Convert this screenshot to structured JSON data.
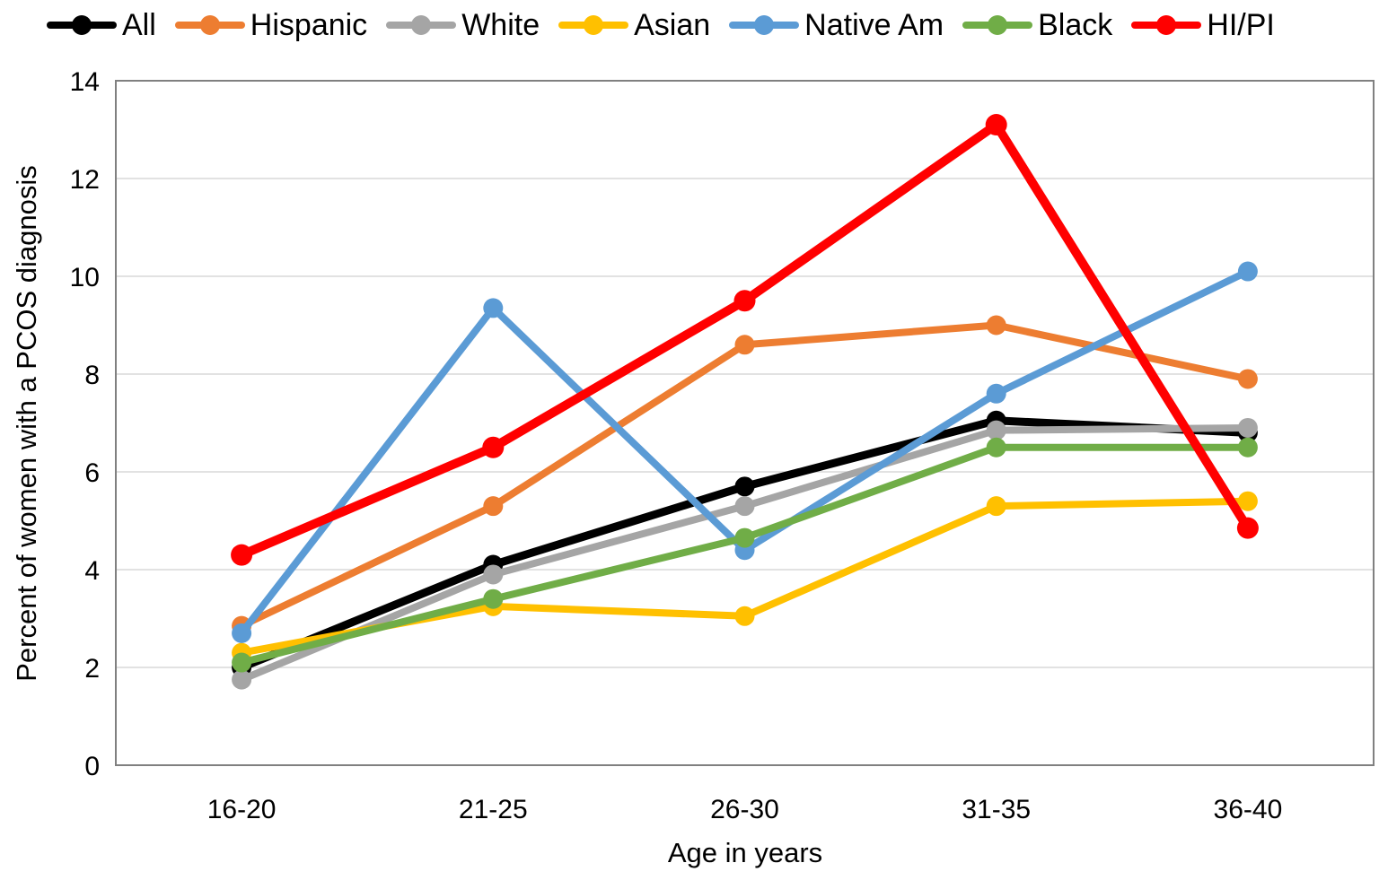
{
  "chart_data": {
    "type": "line",
    "title": "",
    "xlabel": "Age in years",
    "ylabel": "Percent of women with a PCOS diagnosis",
    "categories": [
      "16-20",
      "21-25",
      "26-30",
      "31-35",
      "36-40"
    ],
    "ylim": [
      0,
      14
    ],
    "yticks": [
      0,
      2,
      4,
      6,
      8,
      10,
      12,
      14
    ],
    "ytick_labels": [
      "0",
      "2",
      "4",
      "6",
      "8",
      "10",
      "12",
      "14"
    ],
    "grid": "horizontal",
    "legend_position": "top",
    "plot_border_color": "#808080",
    "gridline_color": "#d9d9d9",
    "series": [
      {
        "name": "All",
        "color": "#000000",
        "values": [
          2.0,
          4.1,
          5.7,
          7.05,
          6.8
        ]
      },
      {
        "name": "Hispanic",
        "color": "#ED7D31",
        "values": [
          2.85,
          5.3,
          8.6,
          9.0,
          7.9
        ]
      },
      {
        "name": "White",
        "color": "#A5A5A5",
        "values": [
          1.75,
          3.9,
          5.3,
          6.85,
          6.9
        ]
      },
      {
        "name": "Asian",
        "color": "#FFC000",
        "values": [
          2.3,
          3.25,
          3.05,
          5.3,
          5.4
        ]
      },
      {
        "name": "Native Am",
        "color": "#5B9BD5",
        "values": [
          2.7,
          9.35,
          4.4,
          7.6,
          10.1
        ]
      },
      {
        "name": "Black",
        "color": "#70AD47",
        "values": [
          2.1,
          3.4,
          4.65,
          6.5,
          6.5
        ]
      },
      {
        "name": "HI/PI",
        "color": "#FF0000",
        "values": [
          4.3,
          6.5,
          9.5,
          13.1,
          4.85
        ]
      }
    ]
  }
}
